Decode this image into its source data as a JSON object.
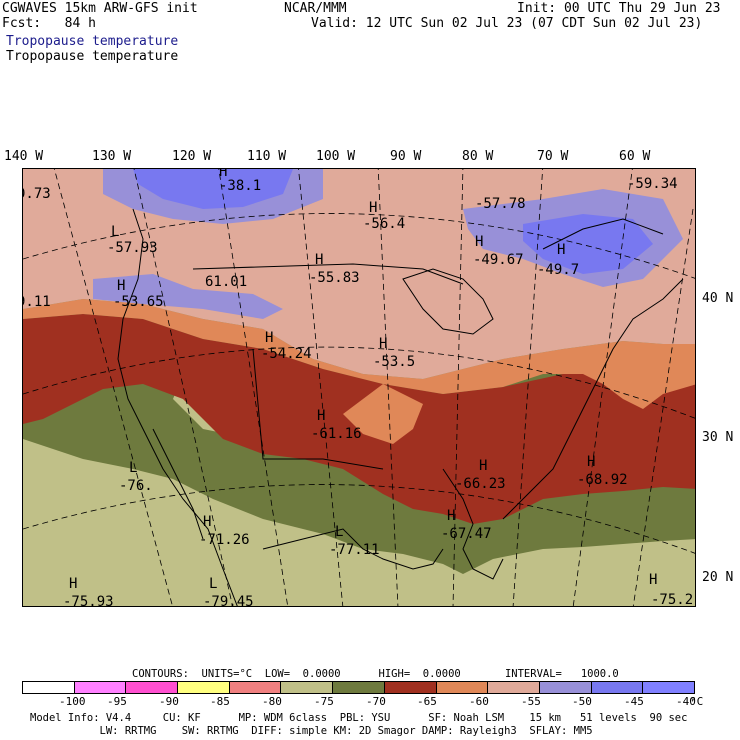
{
  "header": {
    "model": "CGWAVES 15km ARW-GFS init",
    "forecast": "Fcst:   84 h",
    "org": "NCAR/MMM",
    "init": "Init: 00 UTC Thu 29 Jun 23",
    "valid": "Valid: 12 UTC Sun 02 Jul 23 (07 CDT Sun 02 Jul 23)",
    "field_title_1": "Tropopause temperature",
    "field_title_2": "Tropopause temperature"
  },
  "map": {
    "longitude_labels": [
      "140 W",
      "130 W",
      "120 W",
      "110 W",
      "100 W",
      "90 W",
      "80 W",
      "70 W",
      "60 W"
    ],
    "latitude_labels": [
      "40 N",
      "30 N",
      "20 N"
    ],
    "centers": [
      {
        "type": "H",
        "value": "-38.1"
      },
      {
        "type": "",
        "value": "0.73"
      },
      {
        "type": "L",
        "value": "-57.93"
      },
      {
        "type": "H",
        "value": "-56.4"
      },
      {
        "type": "",
        "value": "-57.78"
      },
      {
        "type": "H",
        "value": "-49.67"
      },
      {
        "type": "H",
        "value": "-49.7"
      },
      {
        "type": "",
        "value": "-59.34"
      },
      {
        "type": "",
        "value": "61.01"
      },
      {
        "type": "H",
        "value": "-55.83"
      },
      {
        "type": "",
        "value": "9.11"
      },
      {
        "type": "H",
        "value": "-53.65"
      },
      {
        "type": "H",
        "value": "-54.24"
      },
      {
        "type": "H",
        "value": "-53.5"
      },
      {
        "type": "H",
        "value": "-61.16"
      },
      {
        "type": "H",
        "value": "-66.23"
      },
      {
        "type": "H",
        "value": "-68.92"
      },
      {
        "type": "L",
        "value": "-76."
      },
      {
        "type": "H",
        "value": "-71.26"
      },
      {
        "type": "L",
        "value": "-77.11"
      },
      {
        "type": "H",
        "value": "-67.47"
      },
      {
        "type": "H",
        "value": "-75.93"
      },
      {
        "type": "L",
        "value": "-79.45"
      },
      {
        "type": "H",
        "value": "-75.2"
      }
    ]
  },
  "legend": {
    "contours_line": "CONTOURS:  UNITS=°C  LOW=  0.0000      HIGH=  0.0000       INTERVAL=   1000.0",
    "ticks": [
      "-100",
      "-95",
      "-90",
      "-85",
      "-80",
      "-75",
      "-70",
      "-65",
      "-60",
      "-55",
      "-50",
      "-45",
      "-40",
      "°C"
    ],
    "colors": [
      "#ffffff",
      "#ff80ff",
      "#ff50d0",
      "#ffff80",
      "#f08080",
      "#c0c088",
      "#6e7a3e",
      "#a03020",
      "#e08858",
      "#e0aa9a",
      "#9890d8",
      "#7878f0",
      "#8080ff"
    ]
  },
  "footer": {
    "line1": "Model Info: V4.4     CU: KF      MP: WDM 6class  PBL: YSU      SF: Noah LSM    15 km   51 levels  90 sec",
    "line2": "           LW: RRTMG    SW: RRTMG  DIFF: simple KM: 2D Smagor DAMP: Rayleigh3  SFLAY: MM5"
  }
}
